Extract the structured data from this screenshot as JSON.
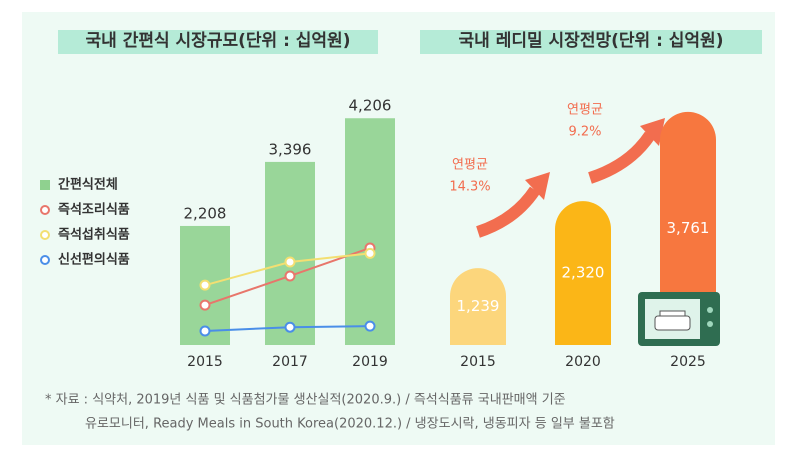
{
  "charts": [
    {
      "type": "bar_line",
      "title": "국내 간편식 시장규모(단위 : 십억원)",
      "categories": [
        "2015",
        "2017",
        "2019"
      ],
      "ylim": [
        0,
        4600
      ],
      "series": [
        {
          "name": "간편식전체",
          "color": "#8fd18f",
          "values": [
            2208,
            3396,
            4206
          ],
          "value_labels": [
            "2,208",
            "3,396",
            "4,206"
          ]
        },
        {
          "name": "즉석조리식품",
          "color": "#e8766b",
          "values": [
            740,
            1280,
            1800
          ]
        },
        {
          "name": "즉석섭취식품",
          "color": "#f3df72",
          "values": [
            1110,
            1540,
            1700
          ]
        },
        {
          "name": "신선편의식품",
          "color": "#4a8ee8",
          "values": [
            260,
            330,
            350
          ]
        }
      ]
    },
    {
      "type": "bar",
      "title": "국내 레디밀 시장전망(단위 : 십억원)",
      "categories": [
        "2015",
        "2020",
        "2025"
      ],
      "ylim": [
        0,
        4000
      ],
      "values": [
        1239,
        2320,
        3761
      ],
      "value_labels": [
        "1,239",
        "2,320",
        "3,761"
      ],
      "colors": [
        "#fcd67c",
        "#fbb617",
        "#f7773f"
      ],
      "annotations": [
        {
          "label": "연평균",
          "rate": "14.3%"
        },
        {
          "label": "연평균",
          "rate": "9.2%"
        }
      ]
    }
  ],
  "footnote": [
    "* 자료 : 식약처, 2019년 식품 및 식품첨가물 생산실적(2020.9.) / 즉석식품류 국내판매액 기준",
    "유로모니터, Ready Meals in South Korea(2020.12.) / 냉장도시락, 냉동피자 등 일부 불포함"
  ]
}
